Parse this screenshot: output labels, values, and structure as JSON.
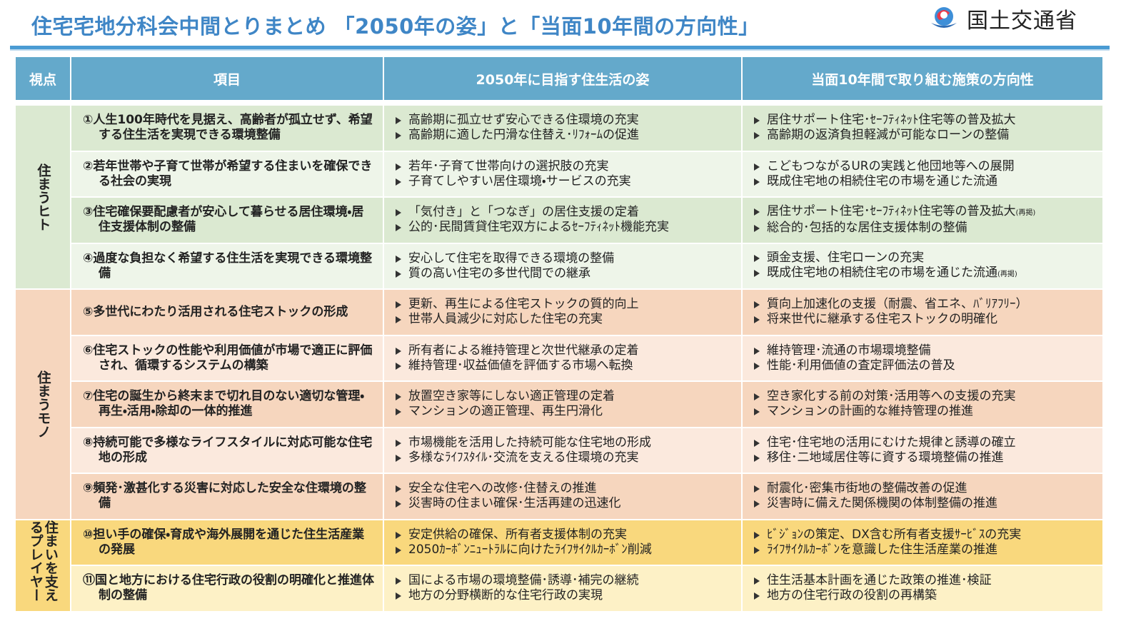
{
  "header": {
    "title": "住宅宅地分科会中間とりまとめ 「2050年の姿」と「当面10年間の方向性」",
    "org": "国土交通省"
  },
  "table": {
    "headers": [
      "視点",
      "項目",
      "2050年に目指す住生活の姿",
      "当面10年間で取り組む施策の方向性"
    ],
    "groups": [
      {
        "label": "住まうヒト",
        "rows": [
          {
            "item": "①人生100年時代を見据え、高齢者が孤立せず、希望する住生活を実現できる環境整備",
            "goals": [
              "高齢期に孤立せず安心できる住環境の充実",
              "高齢期に適した円滑な住替え･ﾘﾌｫｰﾑの促進"
            ],
            "measures": [
              {
                "text": "居住サポート住宅･ｾｰﾌﾃｨﾈｯﾄ住宅等の普及拡大"
              },
              {
                "text": "高齢期の返済負担軽減が可能なローンの整備"
              }
            ]
          },
          {
            "item": "②若年世帯や子育て世帯が希望する住まいを確保できる社会の実現",
            "goals": [
              "若年･子育て世帯向けの選択肢の充実",
              "子育てしやすい居住環境・サービスの充実"
            ],
            "measures": [
              {
                "text": "こどもつながるURの実践と他団地等への展開"
              },
              {
                "text": "既成住宅地の相続住宅の市場を通じた流通"
              }
            ]
          },
          {
            "item": "③住宅確保要配慮者が安心して暮らせる居住環境・居住支援体制の整備",
            "goals": [
              "「気付き」と「つなぎ」の居住支援の定着",
              "公的･民間賃貸住宅双方によるｾｰﾌﾃｨﾈｯﾄ機能充実"
            ],
            "measures": [
              {
                "text": "居住サポート住宅･ｾｰﾌﾃｨﾈｯﾄ住宅等の普及拡大",
                "note": "(再掲)"
              },
              {
                "text": "総合的･包括的な居住支援体制の整備"
              }
            ]
          },
          {
            "item": "④過度な負担なく希望する住生活を実現できる環境整備",
            "goals": [
              "安心して住宅を取得できる環境の整備",
              "質の高い住宅の多世代間での継承"
            ],
            "measures": [
              {
                "text": "頭金支援、住宅ローンの充実"
              },
              {
                "text": "既成住宅地の相続住宅の市場を通じた流通",
                "note": "(再掲)"
              }
            ]
          }
        ]
      },
      {
        "label": "住まうモノ",
        "rows": [
          {
            "item": "⑤多世代にわたり活用される住宅ストックの形成",
            "goals": [
              "更新、再生による住宅ストックの質的向上",
              "世帯人員減少に対応した住宅の充実"
            ],
            "measures": [
              {
                "text": "質向上加速化の支援（耐震、省エネ、ﾊﾞﾘｱﾌﾘｰ）"
              },
              {
                "text": "将来世代に継承する住宅ストックの明確化"
              }
            ]
          },
          {
            "item": "⑥住宅ストックの性能や利用価値が市場で適正に評価され、循環するシステムの構築",
            "goals": [
              "所有者による維持管理と次世代継承の定着",
              "維持管理･収益価値を評価する市場へ転換"
            ],
            "measures": [
              {
                "text": "維持管理･流通の市場環境整備"
              },
              {
                "text": "性能･利用価値の査定評価法の普及"
              }
            ]
          },
          {
            "item": "⑦住宅の誕生から終末まで切れ目のない適切な管理・再生・活用・除却の一体的推進",
            "goals": [
              "放置空き家等にしない適正管理の定着",
              "マンションの適正管理、再生円滑化"
            ],
            "measures": [
              {
                "text": "空き家化する前の対策･活用等への支援の充実"
              },
              {
                "text": "マンションの計画的な維持管理の推進"
              }
            ]
          },
          {
            "item": "⑧持続可能で多様なライフスタイルに対応可能な住宅地の形成",
            "goals": [
              "市場機能を活用した持続可能な住宅地の形成",
              "多様なﾗｲﾌｽﾀｲﾙ･交流を支える住環境の充実"
            ],
            "measures": [
              {
                "text": "住宅･住宅地の活用にむけた規律と誘導の確立"
              },
              {
                "text": "移住･二地域居住等に資する環境整備の推進"
              }
            ]
          },
          {
            "item": "⑨頻発･激甚化する災害に対応した安全な住環境の整備",
            "goals": [
              "安全な住宅への改修･住替えの推進",
              "災害時の住まい確保･生活再建の迅速化"
            ],
            "measures": [
              {
                "text": "耐震化･密集市街地の整備改善の促進"
              },
              {
                "text": "災害時に備えた関係機関の体制整備の推進"
              }
            ]
          }
        ]
      },
      {
        "label": "住まいを支えるプレイヤー",
        "rows": [
          {
            "item": "⑩担い手の確保・育成や海外展開を通じた住生活産業の発展",
            "goals": [
              "安定供給の確保、所有者支援体制の充実",
              "2050ｶｰﾎﾞﾝﾆｭｰﾄﾗﾙに向けたﾗｲﾌｻｲｸﾙｶｰﾎﾞﾝ削減"
            ],
            "measures": [
              {
                "text": "ﾋﾞｼﾞｮﾝの策定、DX含む所有者支援ｻｰﾋﾞｽの充実"
              },
              {
                "text": "ﾗｲﾌｻｲｸﾙｶｰﾎﾞﾝを意識した住生活産業の推進"
              }
            ]
          },
          {
            "item": "⑪国と地方における住宅行政の役割の明確化と推進体制の整備",
            "goals": [
              "国による市場の環境整備･誘導･補完の継続",
              "地方の分野横断的な住宅行政の実現"
            ],
            "measures": [
              {
                "text": "住生活基本計画を通じた政策の推進･検証"
              },
              {
                "text": "地方の住宅行政の役割の再構築"
              }
            ]
          }
        ]
      }
    ]
  }
}
